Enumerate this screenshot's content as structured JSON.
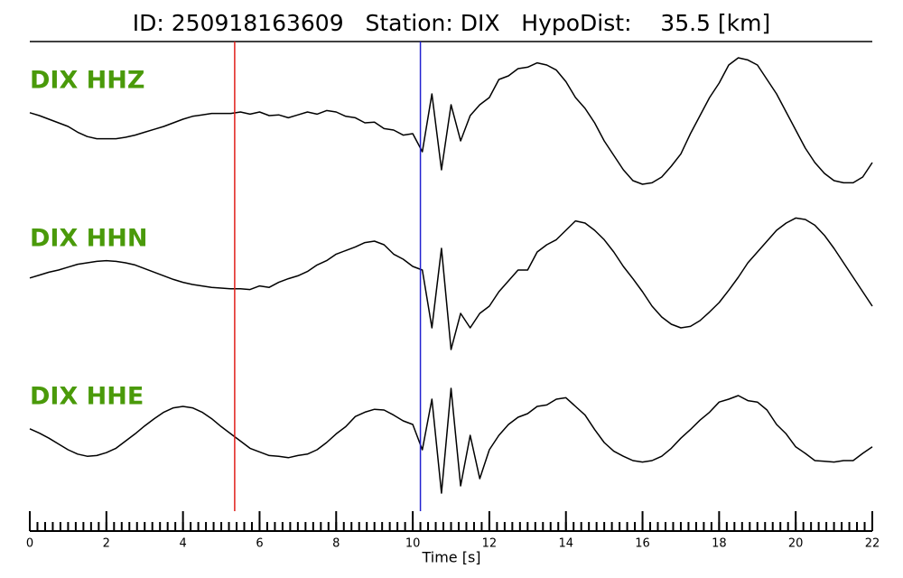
{
  "chart_data": {
    "type": "line",
    "title": "ID: 250918163609   Station: DIX   HypoDist:    35.5 [km]",
    "xlabel": "Time [s]",
    "xlim": [
      0,
      22
    ],
    "xticks": [
      0,
      2,
      4,
      6,
      8,
      10,
      12,
      14,
      16,
      18,
      20,
      22
    ],
    "minor_xtick_step": 0.2,
    "ylim": [
      -1,
      1
    ],
    "label_color": "#4a9a0a",
    "picks": [
      {
        "x": 5.35,
        "color": "#e0201b"
      },
      {
        "x": 10.2,
        "color": "#2020d0"
      }
    ],
    "x": [
      0,
      0.25,
      0.5,
      0.75,
      1,
      1.25,
      1.5,
      1.75,
      2,
      2.25,
      2.5,
      2.75,
      3,
      3.25,
      3.5,
      3.75,
      4,
      4.25,
      4.5,
      4.75,
      5,
      5.25,
      5.5,
      5.75,
      6,
      6.25,
      6.5,
      6.75,
      7,
      7.25,
      7.5,
      7.75,
      8,
      8.25,
      8.5,
      8.75,
      9,
      9.25,
      9.5,
      9.75,
      10,
      10.25,
      10.5,
      10.75,
      11,
      11.25,
      11.5,
      11.75,
      12,
      12.25,
      12.5,
      12.75,
      13,
      13.25,
      13.5,
      13.75,
      14,
      14.25,
      14.5,
      14.75,
      15,
      15.25,
      15.5,
      15.75,
      16,
      16.25,
      16.5,
      16.75,
      17,
      17.25,
      17.5,
      17.75,
      18,
      18.25,
      18.5,
      18.75,
      19,
      19.25,
      19.5,
      19.75,
      20,
      20.25,
      20.5,
      20.75,
      21,
      21.25,
      21.5,
      21.75,
      22
    ],
    "series": [
      {
        "name": "DIX HHZ",
        "color": "#000000",
        "values": [
          0.19,
          0.15,
          0.1,
          0.05,
          0,
          -0.08,
          -0.14,
          -0.17,
          -0.17,
          -0.17,
          -0.15,
          -0.12,
          -0.08,
          -0.04,
          0,
          0.05,
          0.1,
          0.14,
          0.16,
          0.18,
          0.18,
          0.18,
          0.2,
          0.17,
          0.2,
          0.15,
          0.16,
          0.12,
          0.16,
          0.2,
          0.17,
          0.22,
          0.2,
          0.14,
          0.12,
          0.05,
          0.06,
          -0.03,
          -0.05,
          -0.12,
          -0.1,
          -0.35,
          0.45,
          -0.6,
          0.3,
          -0.2,
          0.15,
          0.3,
          0.4,
          0.65,
          0.7,
          0.8,
          0.82,
          0.88,
          0.85,
          0.78,
          0.62,
          0.4,
          0.25,
          0.05,
          -0.2,
          -0.4,
          -0.6,
          -0.75,
          -0.8,
          -0.78,
          -0.7,
          -0.55,
          -0.38,
          -0.1,
          0.15,
          0.4,
          0.6,
          0.85,
          0.95,
          0.92,
          0.85,
          0.65,
          0.45,
          0.2,
          -0.05,
          -0.3,
          -0.5,
          -0.65,
          -0.75,
          -0.78,
          -0.78,
          -0.7,
          -0.5
        ]
      },
      {
        "name": "DIX HHN",
        "color": "#000000",
        "values": [
          0.09,
          0.13,
          0.17,
          0.2,
          0.24,
          0.28,
          0.3,
          0.32,
          0.33,
          0.32,
          0.3,
          0.27,
          0.22,
          0.17,
          0.12,
          0.07,
          0.03,
          0,
          -0.02,
          -0.04,
          -0.05,
          -0.06,
          -0.06,
          -0.07,
          -0.02,
          -0.04,
          0.03,
          0.08,
          0.12,
          0.18,
          0.27,
          0.33,
          0.42,
          0.47,
          0.52,
          0.58,
          0.6,
          0.55,
          0.42,
          0.35,
          0.25,
          0.2,
          -0.6,
          0.5,
          -0.9,
          -0.4,
          -0.6,
          -0.4,
          -0.3,
          -0.1,
          0.05,
          0.2,
          0.2,
          0.45,
          0.55,
          0.62,
          0.75,
          0.88,
          0.85,
          0.75,
          0.62,
          0.45,
          0.25,
          0.08,
          -0.1,
          -0.3,
          -0.45,
          -0.55,
          -0.6,
          -0.58,
          -0.5,
          -0.38,
          -0.25,
          -0.08,
          0.1,
          0.3,
          0.45,
          0.6,
          0.75,
          0.85,
          0.92,
          0.9,
          0.82,
          0.68,
          0.5,
          0.3,
          0.1,
          -0.1,
          -0.3
        ]
      },
      {
        "name": "DIX HHE",
        "color": "#000000",
        "values": [
          0.19,
          0.13,
          0.06,
          -0.02,
          -0.1,
          -0.16,
          -0.19,
          -0.18,
          -0.14,
          -0.08,
          0.02,
          0.12,
          0.23,
          0.33,
          0.42,
          0.48,
          0.5,
          0.48,
          0.42,
          0.33,
          0.22,
          0.12,
          0.02,
          -0.08,
          -0.13,
          -0.18,
          -0.19,
          -0.21,
          -0.18,
          -0.16,
          -0.1,
          0,
          0.12,
          0.22,
          0.36,
          0.42,
          0.46,
          0.45,
          0.38,
          0.3,
          0.25,
          -0.1,
          0.6,
          -0.7,
          0.75,
          -0.6,
          0.1,
          -0.5,
          -0.1,
          0.1,
          0.25,
          0.35,
          0.4,
          0.5,
          0.52,
          0.6,
          0.62,
          0.5,
          0.38,
          0.18,
          0,
          -0.12,
          -0.19,
          -0.25,
          -0.27,
          -0.25,
          -0.19,
          -0.08,
          0.06,
          0.18,
          0.31,
          0.42,
          0.56,
          0.6,
          0.65,
          0.58,
          0.56,
          0.45,
          0.25,
          0.12,
          -0.06,
          -0.15,
          -0.25,
          -0.26,
          -0.27,
          -0.25,
          -0.25,
          -0.15,
          -0.06
        ]
      }
    ]
  }
}
